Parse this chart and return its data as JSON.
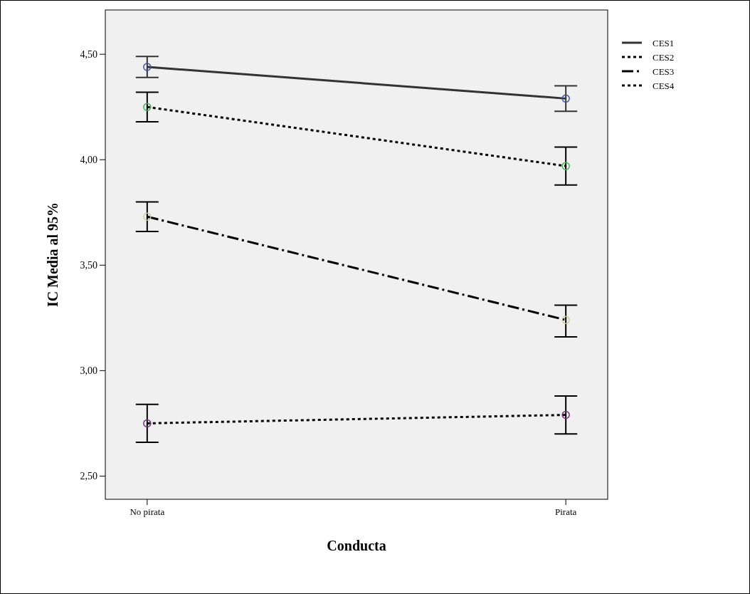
{
  "chart_data": {
    "type": "line",
    "xlabel": "Conducta",
    "ylabel": "IC Media al 95%",
    "categories": [
      "No pirata",
      "Pirata"
    ],
    "ylim": [
      2.39,
      4.71
    ],
    "yticks": [
      {
        "value": 2.5,
        "label": "2,50"
      },
      {
        "value": 3,
        "label": "3,00"
      },
      {
        "value": 3.5,
        "label": "3,50"
      },
      {
        "value": 4,
        "label": "4,00"
      },
      {
        "value": 4.5,
        "label": "4,50"
      }
    ],
    "grid": false,
    "legend": "top right",
    "marker": "circle",
    "series": [
      {
        "name": "CES1",
        "color": "#333333",
        "colors": [
          "#3c4fa8",
          "#3c4fa8"
        ],
        "line_style": "solid",
        "values": [
          4.44,
          4.29
        ],
        "errors": [
          [
            4.39,
            4.49
          ],
          [
            4.23,
            4.35
          ]
        ]
      },
      {
        "name": "CES2",
        "color": "#000000",
        "colors": [
          "#3cb44b",
          "#3cb44b"
        ],
        "line_style": "dotted",
        "values": [
          4.25,
          3.97
        ],
        "errors": [
          [
            4.18,
            4.32
          ],
          [
            3.88,
            4.06
          ]
        ]
      },
      {
        "name": "CES3",
        "color": "#000000",
        "colors": [
          "#cfcb98",
          "#cfcb98"
        ],
        "line_style": "dashed",
        "values": [
          3.73,
          3.24
        ],
        "errors": [
          [
            3.66,
            3.8
          ],
          [
            3.16,
            3.31
          ]
        ]
      },
      {
        "name": "CES4",
        "color": "#000000",
        "colors": [
          "#7b2a7b",
          "#7b2a7b"
        ],
        "line_style": "dotted",
        "values": [
          2.75,
          2.79
        ],
        "errors": [
          [
            2.66,
            2.84
          ],
          [
            2.7,
            2.88
          ]
        ]
      }
    ]
  }
}
